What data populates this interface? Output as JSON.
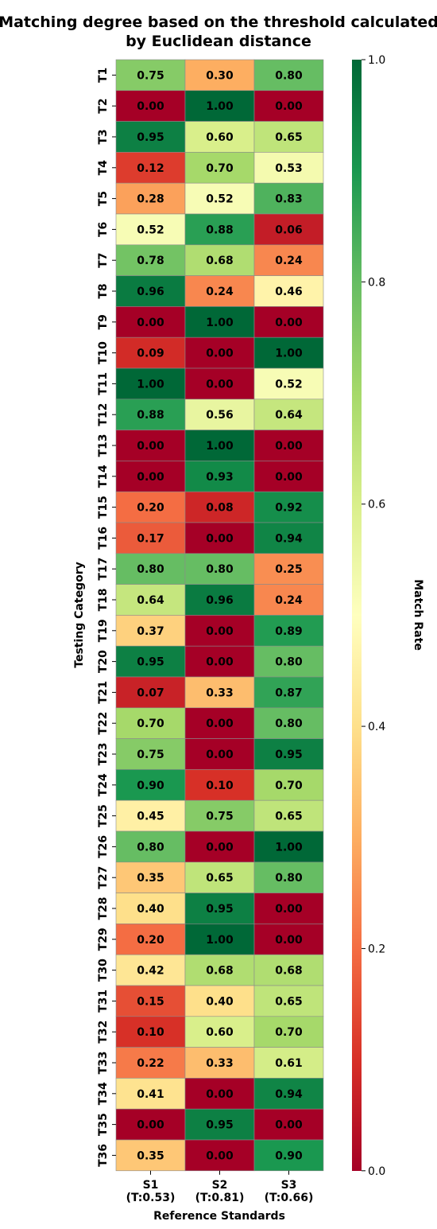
{
  "chart_data": {
    "type": "heatmap",
    "title": [
      "Matching degree based on the threshold calculated",
      "by Euclidean distance"
    ],
    "xlabel": "Reference Standards",
    "ylabel": "Testing Category",
    "colorbar_label": "Match Rate",
    "colorbar_ticks": [
      "0.0",
      "0.2",
      "0.4",
      "0.6",
      "0.8",
      "1.0"
    ],
    "colormap": "RdYlGn",
    "vmin": 0,
    "vmax": 1,
    "columns": [
      {
        "name": "S1",
        "threshold": "(T:0.53)"
      },
      {
        "name": "S2",
        "threshold": "(T:0.81)"
      },
      {
        "name": "S3",
        "threshold": "(T:0.66)"
      }
    ],
    "rows": [
      "T1",
      "T2",
      "T3",
      "T4",
      "T5",
      "T6",
      "T7",
      "T8",
      "T9",
      "T10",
      "T11",
      "T12",
      "T13",
      "T14",
      "T15",
      "T16",
      "T17",
      "T18",
      "T19",
      "T20",
      "T21",
      "T22",
      "T23",
      "T24",
      "T25",
      "T26",
      "T27",
      "T28",
      "T29",
      "T30",
      "T31",
      "T32",
      "T33",
      "T34",
      "T35",
      "T36"
    ],
    "values": [
      [
        0.75,
        0.3,
        0.8
      ],
      [
        0.0,
        1.0,
        0.0
      ],
      [
        0.95,
        0.6,
        0.65
      ],
      [
        0.12,
        0.7,
        0.53
      ],
      [
        0.28,
        0.52,
        0.83
      ],
      [
        0.52,
        0.88,
        0.06
      ],
      [
        0.78,
        0.68,
        0.24
      ],
      [
        0.96,
        0.24,
        0.46
      ],
      [
        0.0,
        1.0,
        0.0
      ],
      [
        0.09,
        0.0,
        1.0
      ],
      [
        1.0,
        0.0,
        0.52
      ],
      [
        0.88,
        0.56,
        0.64
      ],
      [
        0.0,
        1.0,
        0.0
      ],
      [
        0.0,
        0.93,
        0.0
      ],
      [
        0.2,
        0.08,
        0.92
      ],
      [
        0.17,
        0.0,
        0.94
      ],
      [
        0.8,
        0.8,
        0.25
      ],
      [
        0.64,
        0.96,
        0.24
      ],
      [
        0.37,
        0.0,
        0.89
      ],
      [
        0.95,
        0.0,
        0.8
      ],
      [
        0.07,
        0.33,
        0.87
      ],
      [
        0.7,
        0.0,
        0.8
      ],
      [
        0.75,
        0.0,
        0.95
      ],
      [
        0.9,
        0.1,
        0.7
      ],
      [
        0.45,
        0.75,
        0.65
      ],
      [
        0.8,
        0.0,
        1.0
      ],
      [
        0.35,
        0.65,
        0.8
      ],
      [
        0.4,
        0.95,
        0.0
      ],
      [
        0.2,
        1.0,
        0.0
      ],
      [
        0.42,
        0.68,
        0.68
      ],
      [
        0.15,
        0.4,
        0.65
      ],
      [
        0.1,
        0.6,
        0.7
      ],
      [
        0.22,
        0.33,
        0.61
      ],
      [
        0.41,
        0.0,
        0.94
      ],
      [
        0.0,
        0.95,
        0.0
      ],
      [
        0.35,
        0.0,
        0.9
      ]
    ]
  }
}
